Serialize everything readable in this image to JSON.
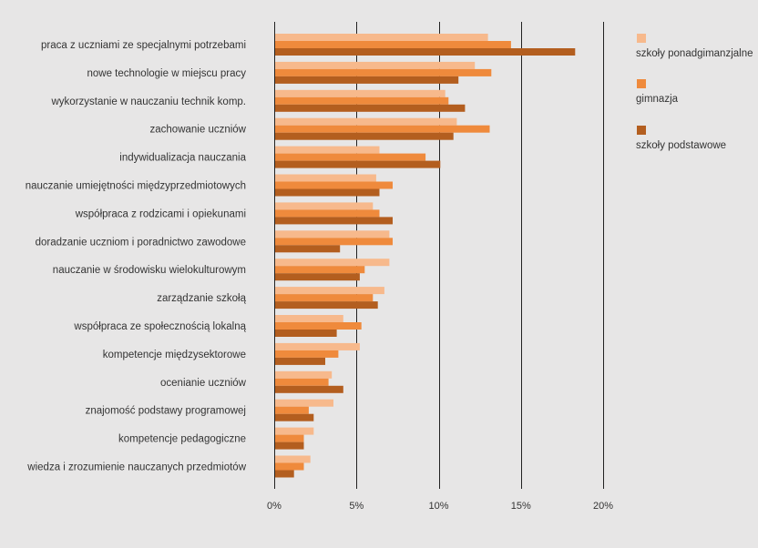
{
  "chart_data": {
    "type": "bar",
    "orientation": "horizontal",
    "categories": [
      "praca z uczniami ze specjalnymi potrzebami",
      "nowe technologie w miejscu pracy",
      "wykorzystanie w nauczaniu technik komp.",
      "zachowanie uczniów",
      "indywidualizacja nauczania",
      "nauczanie umiejętności międzyprzedmiotowych",
      "współpraca z rodzicami i opiekunami",
      "doradzanie uczniom i poradnictwo zawodowe",
      "nauczanie w środowisku wielokulturowym",
      "zarządzanie szkołą",
      "współpraca ze społecznością lokalną",
      "kompetencje międzysektorowe",
      "ocenianie uczniów",
      "znajomość podstawy programowej",
      "kompetencje pedagogiczne",
      "wiedza i zrozumienie nauczanych przedmiotów"
    ],
    "series": [
      {
        "name": "szkoły ponadgimanzjalne",
        "color": "#f7b98c",
        "values": [
          13.0,
          12.2,
          10.4,
          11.1,
          6.4,
          6.2,
          6.0,
          7.0,
          7.0,
          6.7,
          4.2,
          5.2,
          3.5,
          3.6,
          2.4,
          2.2
        ]
      },
      {
        "name": "gimnazja",
        "color": "#ef8a3c",
        "values": [
          14.4,
          13.2,
          10.6,
          13.1,
          9.2,
          7.2,
          6.4,
          7.2,
          5.5,
          6.0,
          5.3,
          3.9,
          3.3,
          2.1,
          1.8,
          1.8
        ]
      },
      {
        "name": "szkoły podstawowe",
        "color": "#b35e1f",
        "values": [
          18.3,
          11.2,
          11.6,
          10.9,
          10.1,
          6.4,
          7.2,
          4.0,
          5.2,
          6.3,
          3.8,
          3.1,
          4.2,
          2.4,
          1.8,
          1.2
        ]
      }
    ],
    "xlim": [
      0,
      20
    ],
    "xticks": [
      "0%",
      "5%",
      "10%",
      "15%",
      "20%"
    ],
    "tick_values": [
      0,
      5,
      10,
      15,
      20
    ],
    "legend_position": "top-right",
    "grid": true,
    "background_color": "#e7e6e6",
    "grid_color": "#222222"
  }
}
